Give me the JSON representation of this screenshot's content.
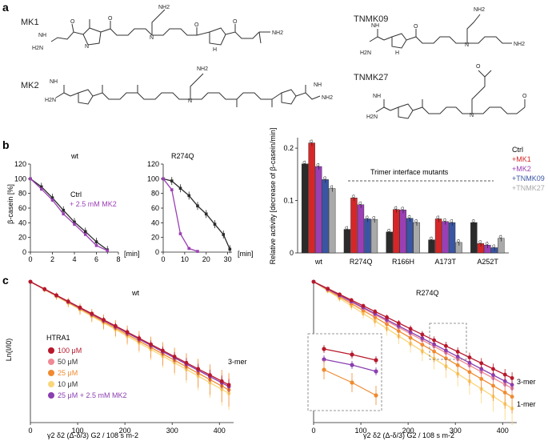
{
  "panels": {
    "a": "a",
    "b": "b",
    "c": "c"
  },
  "compounds": [
    {
      "name": "MK1"
    },
    {
      "name": "TNMK09"
    },
    {
      "name": "MK2"
    },
    {
      "name": "TNMK27"
    }
  ],
  "atom_labels": {
    "n": "N",
    "nh": "NH",
    "h": "H",
    "nh2": "NH2",
    "h2n": "H2N",
    "o": "O"
  },
  "colors": {
    "ctrl": "#2b2b2b",
    "mk1": "#d62728",
    "mk2": "#9b3fb5",
    "tnmk09": "#3a55a4",
    "tnmk27": "#a9a9a9",
    "c100": "#b7182b",
    "c50": "#f08a94",
    "c25": "#f08a30",
    "c10": "#f9d67a",
    "cmk2": "#8a3fb0"
  },
  "panel_b_left": {
    "chart_data": [
      {
        "type": "line",
        "title": "wt",
        "ylabel": "β-casein [%]",
        "xunit": "[min]",
        "xlim": [
          0,
          8
        ],
        "ylim": [
          0,
          120
        ],
        "xticks": [
          "0",
          "2",
          "4",
          "6",
          "8"
        ],
        "yticks": [
          "0",
          "20",
          "40",
          "60",
          "80",
          "100",
          "120"
        ],
        "legend": [
          "Ctrl",
          "+ 2.5 mM MK2"
        ],
        "series": [
          {
            "name": "Ctrl",
            "x": [
              0,
              1,
              2,
              3,
              4,
              5,
              6,
              7
            ],
            "y": [
              100,
              89,
              74,
              57,
              41,
              28,
              14,
              3
            ]
          },
          {
            "name": "+ 2.5 mM MK2",
            "x": [
              0,
              1,
              2,
              3,
              4,
              5,
              6,
              7
            ],
            "y": [
              100,
              86,
              71,
              52,
              38,
              24,
              9,
              2
            ]
          }
        ]
      },
      {
        "type": "line",
        "title": "R274Q",
        "xunit": "[min]",
        "xlim": [
          0,
          32
        ],
        "ylim": [
          0,
          120
        ],
        "xticks": [
          "0",
          "10",
          "20",
          "30"
        ],
        "yticks": [
          "0",
          "20",
          "40",
          "60",
          "80",
          "100",
          "120"
        ],
        "series": [
          {
            "name": "Ctrl",
            "x": [
              0,
              4,
              8,
              12,
              16,
              20,
              24,
              28,
              31
            ],
            "y": [
              100,
              97,
              87,
              77,
              63,
              52,
              38,
              24,
              4
            ]
          },
          {
            "name": "+ 2.5 mM MK2",
            "x": [
              0,
              4,
              8,
              12,
              16
            ],
            "y": [
              100,
              85,
              25,
              5,
              1
            ]
          }
        ]
      }
    ]
  },
  "panel_b_right": {
    "chart_data": {
      "type": "bar",
      "ylabel": "Relative activity [decrease of β-casein/min]",
      "ylim": [
        0,
        0.22
      ],
      "yticks": [
        "0",
        "0.1",
        "0.2"
      ],
      "categories": [
        "wt",
        "R274Q",
        "R166H",
        "A173T",
        "A252T"
      ],
      "annotation": "Trimer interface mutants",
      "legend": [
        "Ctrl",
        "+MK1",
        "+MK2",
        "+TNMK09",
        "+TNMK27"
      ],
      "series": [
        {
          "name": "Ctrl",
          "values": [
            0.17,
            0.045,
            0.04,
            0.025,
            0.058
          ]
        },
        {
          "name": "+MK1",
          "values": [
            0.21,
            0.105,
            0.083,
            0.065,
            0.018
          ]
        },
        {
          "name": "+MK2",
          "values": [
            0.165,
            0.092,
            0.082,
            0.06,
            0.015
          ]
        },
        {
          "name": "+TNMK09",
          "values": [
            0.14,
            0.065,
            0.066,
            0.058,
            0.01
          ]
        },
        {
          "name": "+TNMK27",
          "values": [
            0.123,
            0.064,
            0.058,
            0.02,
            0.028
          ]
        }
      ]
    }
  },
  "panel_c": {
    "chart_data": [
      {
        "type": "scatter",
        "title": "wt",
        "ylabel": "Ln(I/I0)",
        "xlabel": "γ2 δ2 (Δ-δ/3) G2 / 108 s m-2",
        "xlim": [
          0,
          430
        ],
        "ylim": [
          -3.5,
          0
        ],
        "xticks": [
          "0",
          "100",
          "200",
          "300",
          "400"
        ],
        "legend_title": "HTRA1",
        "legend": [
          "100 μM",
          "50 μM",
          "25 μM",
          "10 μM",
          "25 μM + 2.5 mM MK2"
        ],
        "fit_label": "3-mer",
        "series": [
          {
            "name": "100 μM",
            "slope": -0.0061
          },
          {
            "name": "50 μM",
            "slope": -0.0062
          },
          {
            "name": "25 μM",
            "slope": -0.0064
          },
          {
            "name": "10 μM",
            "slope": -0.0066
          },
          {
            "name": "25 μM + 2.5 mM MK2",
            "slope": -0.0062
          }
        ]
      },
      {
        "type": "scatter",
        "title": "R274Q",
        "xlabel": "γ2 δ2 (Δ-δ/3) G2 / 108 s m-2",
        "xlim": [
          0,
          430
        ],
        "ylim": [
          -3.5,
          0
        ],
        "xticks": [
          "0",
          "100",
          "200",
          "300",
          "400"
        ],
        "fit_labels": [
          "3-mer",
          "1-mer"
        ],
        "series": [
          {
            "name": "100 μM",
            "slope": -0.0057
          },
          {
            "name": "50 μM",
            "slope": -0.0063
          },
          {
            "name": "25 μM",
            "slope": -0.0068
          },
          {
            "name": "10 μM",
            "slope": -0.0075
          },
          {
            "name": "25 μM + 2.5 mM MK2",
            "slope": -0.0061
          }
        ]
      }
    ]
  }
}
